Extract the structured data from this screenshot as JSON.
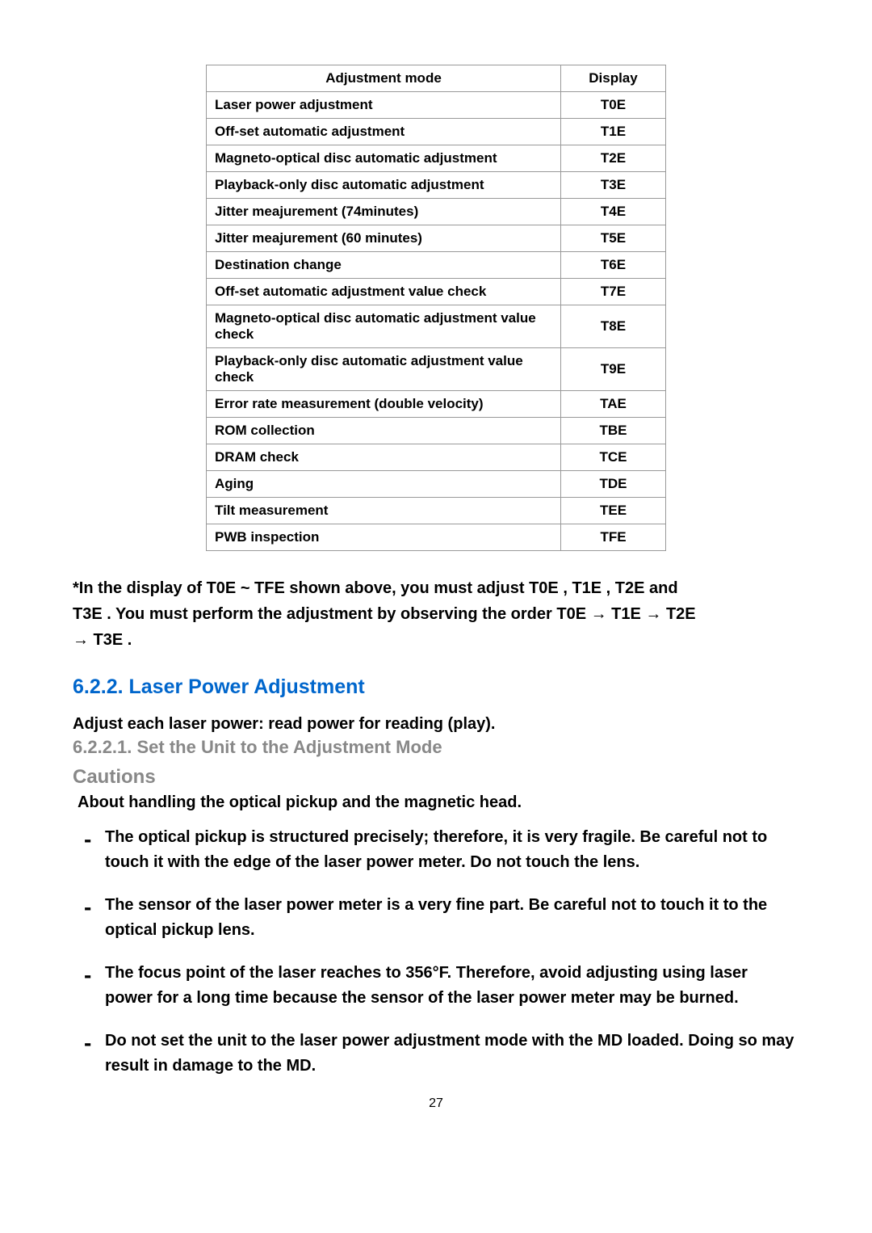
{
  "table": {
    "headers": {
      "mode": "Adjustment mode",
      "display": "Display"
    },
    "rows": [
      {
        "mode": "Laser power adjustment",
        "display": "T0E"
      },
      {
        "mode": "Off-set automatic adjustment",
        "display": "T1E"
      },
      {
        "mode": "Magneto-optical disc automatic adjustment",
        "display": "T2E"
      },
      {
        "mode": "Playback-only disc automatic adjustment",
        "display": "T3E"
      },
      {
        "mode": "Jitter meajurement (74minutes)",
        "display": "T4E"
      },
      {
        "mode": "Jitter meajurement (60 minutes)",
        "display": "T5E"
      },
      {
        "mode": "Destination change",
        "display": "T6E"
      },
      {
        "mode": "Off-set automatic adjustment value check",
        "display": "T7E"
      },
      {
        "mode": "Magneto-optical disc automatic adjustment value check",
        "display": "T8E"
      },
      {
        "mode": "Playback-only disc automatic adjustment value check",
        "display": "T9E"
      },
      {
        "mode": "Error rate measurement (double velocity)",
        "display": "TAE"
      },
      {
        "mode": "ROM collection",
        "display": "TBE"
      },
      {
        "mode": "DRAM check",
        "display": "TCE"
      },
      {
        "mode": "Aging",
        "display": "TDE"
      },
      {
        "mode": "Tilt measurement",
        "display": "TEE"
      },
      {
        "mode": "PWB inspection",
        "display": "TFE"
      }
    ]
  },
  "note_line1": "*In the display of T0E ~ TFE shown above, you must adjust T0E , T1E , T2E and",
  "note_line2a": "T3E . You must perform the adjustment by observing the order T0E ",
  "note_line2b": " T1E ",
  "note_line2c": " T2E",
  "note_line3b": " T3E .",
  "arrow": "→",
  "section_title": "6.2.2. Laser Power Adjustment",
  "adjust_line": "Adjust each laser power: read power for reading (play).",
  "subsection_title": "6.2.2.1. Set the Unit to the Adjustment Mode",
  "cautions_title": "Cautions",
  "about_line": "About handling the optical pickup and the magnetic head.",
  "bullets": [
    "The optical pickup is structured precisely; therefore, it is very fragile. Be careful not to touch it with the edge of the laser power meter. Do not touch the lens.",
    "The sensor of the laser power meter is a very fine part. Be careful not to touch it to the optical pickup lens.",
    "The focus point of the laser reaches to 356°F. Therefore, avoid adjusting using laser power for a long time because the sensor of the laser power meter may be burned.",
    "Do not set the unit to the laser power adjustment mode with the MD loaded. Doing so may result in damage to the MD."
  ],
  "page_number": "27"
}
